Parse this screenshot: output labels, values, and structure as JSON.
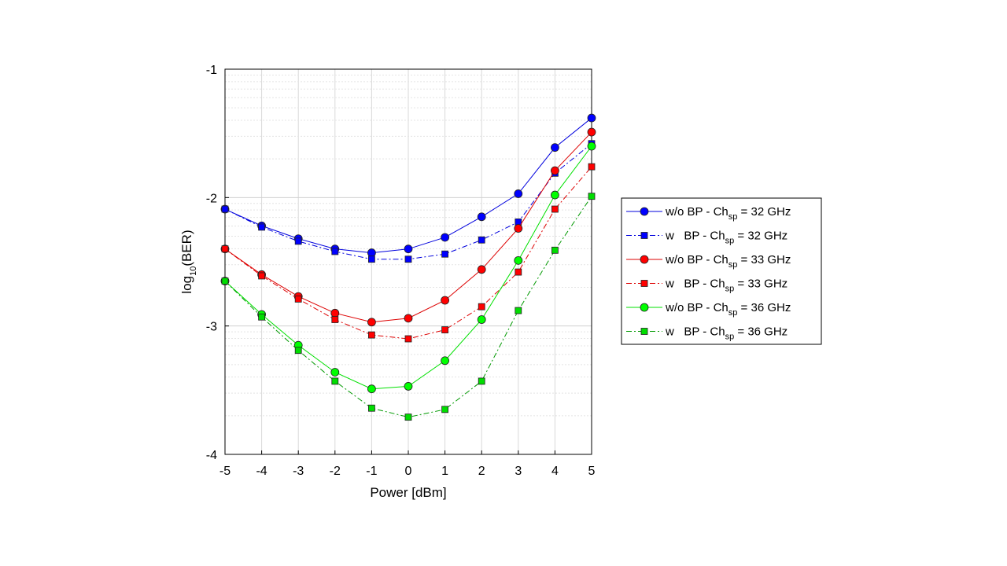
{
  "chart_data": {
    "type": "line",
    "xlabel": "Power [dBm]",
    "ylabel_main": "log",
    "ylabel_sub": "10",
    "ylabel_rest": "(BER)",
    "x": [
      -5,
      -4,
      -3,
      -2,
      -1,
      0,
      1,
      2,
      3,
      4,
      5
    ],
    "xlim": [
      -5,
      5
    ],
    "ylim": [
      -4,
      -1
    ],
    "x_ticks": [
      "-5",
      "-4",
      "-3",
      "-2",
      "-1",
      "0",
      "1",
      "2",
      "3",
      "4",
      "5"
    ],
    "y_ticks": [
      "-1",
      "-2",
      "-3",
      "-4"
    ],
    "grid": true,
    "legend_position": "right, outside plot",
    "series": [
      {
        "label_pre": "w/o BP - Ch",
        "label_sub": "sp",
        "label_post": " = 32 GHz",
        "color": "#0000dd",
        "dash": "solid",
        "marker": "circle",
        "marker_fill": "#0000ff",
        "values": [
          -2.09,
          -2.22,
          -2.32,
          -2.4,
          -2.43,
          -2.4,
          -2.31,
          -2.15,
          -1.97,
          -1.61,
          -1.38
        ]
      },
      {
        "label_pre": "w   BP - Ch",
        "label_sub": "sp",
        "label_post": " = 32 GHz",
        "color": "#0000dd",
        "dash": "dashdot",
        "marker": "square",
        "marker_fill": "#0000ff",
        "values": [
          -2.09,
          -2.23,
          -2.34,
          -2.42,
          -2.48,
          -2.48,
          -2.44,
          -2.33,
          -2.19,
          -1.81,
          -1.58
        ]
      },
      {
        "label_pre": "w/o BP - Ch",
        "label_sub": "sp",
        "label_post": " = 33 GHz",
        "color": "#dd0000",
        "dash": "solid",
        "marker": "circle",
        "marker_fill": "#ff0000",
        "values": [
          -2.4,
          -2.6,
          -2.77,
          -2.9,
          -2.97,
          -2.94,
          -2.8,
          -2.56,
          -2.24,
          -1.79,
          -1.49
        ]
      },
      {
        "label_pre": "w   BP - Ch",
        "label_sub": "sp",
        "label_post": " = 33 GHz",
        "color": "#dd0000",
        "dash": "dashdot",
        "marker": "square",
        "marker_fill": "#ff0000",
        "values": [
          -2.4,
          -2.61,
          -2.79,
          -2.95,
          -3.07,
          -3.1,
          -3.03,
          -2.85,
          -2.58,
          -2.09,
          -1.76
        ]
      },
      {
        "label_pre": "w/o BP - Ch",
        "label_sub": "sp",
        "label_post": " = 36 GHz",
        "color": "#00e000",
        "dash": "solid",
        "marker": "circle",
        "marker_fill": "#00ff00",
        "values": [
          -2.65,
          -2.91,
          -3.15,
          -3.36,
          -3.49,
          -3.47,
          -3.27,
          -2.95,
          -2.49,
          -1.98,
          -1.6
        ]
      },
      {
        "label_pre": "w   BP - Ch",
        "label_sub": "sp",
        "label_post": " = 36 GHz",
        "color": "#009900",
        "dash": "dashdot",
        "marker": "square",
        "marker_fill": "#00dd00",
        "values": [
          -2.65,
          -2.93,
          -3.19,
          -3.43,
          -3.64,
          -3.71,
          -3.65,
          -3.43,
          -2.88,
          -2.41,
          -1.99
        ]
      }
    ]
  }
}
